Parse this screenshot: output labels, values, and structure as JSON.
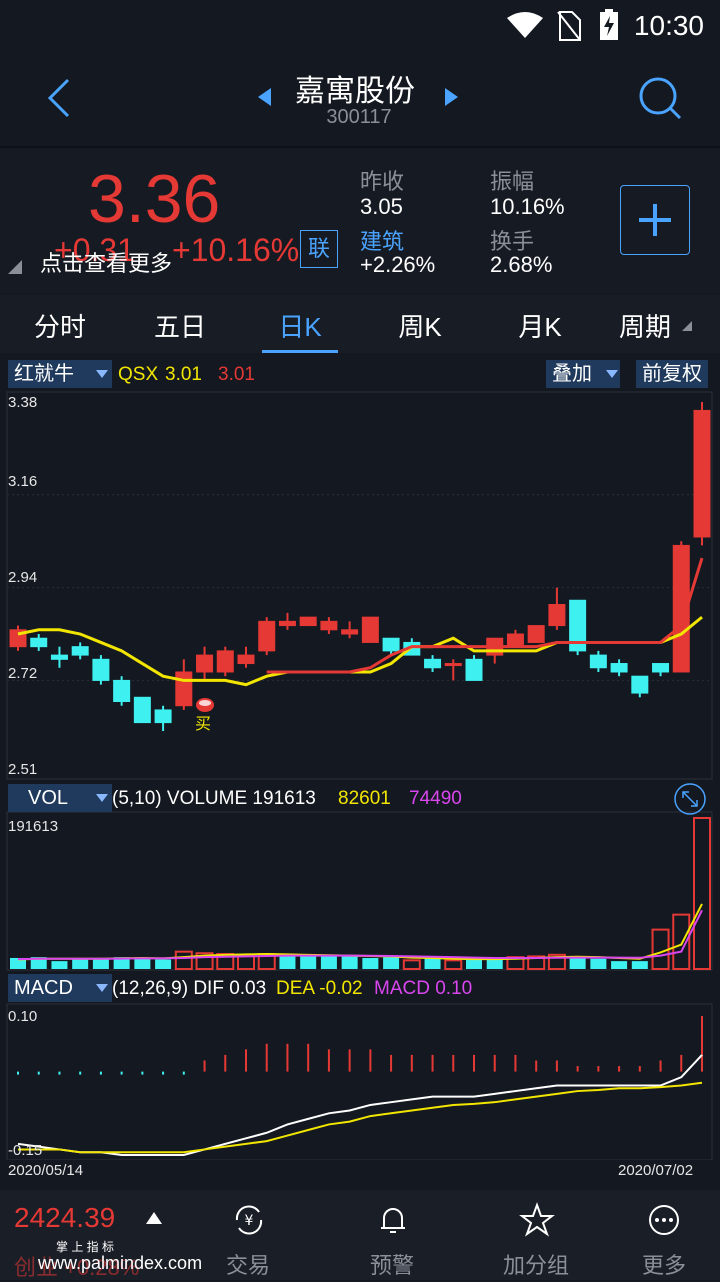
{
  "status": {
    "time": "10:30"
  },
  "header": {
    "title": "嘉寓股份",
    "code": "300117"
  },
  "quote": {
    "price": "3.36",
    "change": "+0.31",
    "change_pct": "+10.16%",
    "lian": "联",
    "tip": "点击查看更多",
    "prev_close_label": "昨收",
    "prev_close": "3.05",
    "amplitude_label": "振幅",
    "amplitude": "10.16%",
    "sector_label": "建筑",
    "sector_value": "+2.26%",
    "turnover_label": "换手",
    "turnover": "2.68%"
  },
  "tabs": [
    "分时",
    "五日",
    "日K",
    "周K",
    "月K",
    "周期"
  ],
  "active_tab": 2,
  "kline_bar": {
    "indicator": "红就牛",
    "qsx_label": "QSX",
    "qsx_val1": "3.01",
    "qsx_val2": "3.01",
    "overlay": "叠加",
    "adjust": "前复权"
  },
  "price_axis": [
    "3.38",
    "3.16",
    "2.94",
    "2.72",
    "2.51"
  ],
  "buy_marker": "买",
  "vol_bar": {
    "indicator": "VOL",
    "params": "(5,10) VOLUME 191613",
    "ma5": "82601",
    "ma10": "74490",
    "axis_top": "191613"
  },
  "macd_bar": {
    "indicator": "MACD",
    "params": "(12,26,9) DIF 0.03",
    "dea": "DEA -0.02",
    "macd": "MACD 0.10",
    "axis_top": "0.10",
    "axis_bottom": "-0.15"
  },
  "dates": {
    "start": "2020/05/14",
    "end": "2020/07/02"
  },
  "bottom": {
    "index_value": "2424.39",
    "index_name": "掌 上 指 标",
    "index_change": "创业 +0.28%",
    "watermark": "www.palmindex.com",
    "items": [
      "交易",
      "预警",
      "加分组",
      "更多"
    ]
  },
  "colors": {
    "up": "#e53935",
    "down": "#3ef0f0",
    "accent": "#4aa3ff",
    "ma_yellow": "#f2e600",
    "ma_magenta": "#d946ef"
  },
  "chart_data": {
    "type": "candlestick",
    "ylim": [
      2.51,
      3.38
    ],
    "candles": [
      {
        "o": 2.8,
        "c": 2.84,
        "h": 2.85,
        "l": 2.79
      },
      {
        "o": 2.82,
        "c": 2.8,
        "h": 2.83,
        "l": 2.79
      },
      {
        "o": 2.78,
        "c": 2.77,
        "h": 2.8,
        "l": 2.75
      },
      {
        "o": 2.8,
        "c": 2.78,
        "h": 2.81,
        "l": 2.77
      },
      {
        "o": 2.77,
        "c": 2.72,
        "h": 2.78,
        "l": 2.71
      },
      {
        "o": 2.72,
        "c": 2.67,
        "h": 2.73,
        "l": 2.66
      },
      {
        "o": 2.68,
        "c": 2.62,
        "h": 2.68,
        "l": 2.62
      },
      {
        "o": 2.65,
        "c": 2.62,
        "h": 2.66,
        "l": 2.6
      },
      {
        "o": 2.66,
        "c": 2.74,
        "h": 2.77,
        "l": 2.65
      },
      {
        "o": 2.74,
        "c": 2.78,
        "h": 2.8,
        "l": 2.72
      },
      {
        "o": 2.74,
        "c": 2.79,
        "h": 2.8,
        "l": 2.73
      },
      {
        "o": 2.76,
        "c": 2.78,
        "h": 2.8,
        "l": 2.75
      },
      {
        "o": 2.79,
        "c": 2.86,
        "h": 2.87,
        "l": 2.78
      },
      {
        "o": 2.85,
        "c": 2.86,
        "h": 2.88,
        "l": 2.84
      },
      {
        "o": 2.85,
        "c": 2.87,
        "h": 2.87,
        "l": 2.85
      },
      {
        "o": 2.84,
        "c": 2.86,
        "h": 2.87,
        "l": 2.83
      },
      {
        "o": 2.83,
        "c": 2.84,
        "h": 2.86,
        "l": 2.82
      },
      {
        "o": 2.81,
        "c": 2.87,
        "h": 2.87,
        "l": 2.81
      },
      {
        "o": 2.82,
        "c": 2.79,
        "h": 2.82,
        "l": 2.78
      },
      {
        "o": 2.81,
        "c": 2.78,
        "h": 2.82,
        "l": 2.78
      },
      {
        "o": 2.77,
        "c": 2.75,
        "h": 2.78,
        "l": 2.74
      },
      {
        "o": 2.76,
        "c": 2.76,
        "h": 2.77,
        "l": 2.72
      },
      {
        "o": 2.77,
        "c": 2.72,
        "h": 2.78,
        "l": 2.72
      },
      {
        "o": 2.78,
        "c": 2.82,
        "h": 2.82,
        "l": 2.76
      },
      {
        "o": 2.8,
        "c": 2.83,
        "h": 2.84,
        "l": 2.8
      },
      {
        "o": 2.81,
        "c": 2.85,
        "h": 2.85,
        "l": 2.81
      },
      {
        "o": 2.85,
        "c": 2.9,
        "h": 2.94,
        "l": 2.84
      },
      {
        "o": 2.91,
        "c": 2.79,
        "h": 2.91,
        "l": 2.78
      },
      {
        "o": 2.78,
        "c": 2.75,
        "h": 2.79,
        "l": 2.74
      },
      {
        "o": 2.76,
        "c": 2.74,
        "h": 2.77,
        "l": 2.73
      },
      {
        "o": 2.73,
        "c": 2.69,
        "h": 2.73,
        "l": 2.68
      },
      {
        "o": 2.76,
        "c": 2.74,
        "h": 2.76,
        "l": 2.73
      },
      {
        "o": 2.74,
        "c": 3.04,
        "h": 3.05,
        "l": 2.74
      },
      {
        "o": 3.06,
        "c": 3.36,
        "h": 3.38,
        "l": 3.04
      }
    ],
    "ma_yellow": [
      2.83,
      2.84,
      2.84,
      2.83,
      2.81,
      2.79,
      2.76,
      2.73,
      2.72,
      2.72,
      2.72,
      2.71,
      2.73,
      2.74,
      2.74,
      2.74,
      2.74,
      2.74,
      2.76,
      2.8,
      2.8,
      2.82,
      2.79,
      2.79,
      2.79,
      2.79,
      2.81,
      2.81,
      2.81,
      2.81,
      2.81,
      2.81,
      2.83,
      2.87
    ],
    "ma_red": [
      null,
      null,
      null,
      null,
      null,
      null,
      null,
      null,
      null,
      null,
      null,
      null,
      2.74,
      2.74,
      2.74,
      2.74,
      2.74,
      2.75,
      2.78,
      2.8,
      2.8,
      2.8,
      2.8,
      2.8,
      2.8,
      2.8,
      2.81,
      2.81,
      2.81,
      2.81,
      2.81,
      2.81,
      2.85,
      3.01
    ],
    "volume": [
      14000,
      15000,
      10000,
      13000,
      13000,
      15000,
      14000,
      12000,
      22000,
      20000,
      19000,
      17000,
      19000,
      18000,
      17000,
      18000,
      16000,
      14000,
      15000,
      11000,
      14000,
      11000,
      12000,
      13000,
      15000,
      16000,
      18000,
      14000,
      13000,
      10000,
      10000,
      50000,
      69000,
      191613
    ],
    "volume_up": [
      false,
      false,
      false,
      false,
      false,
      false,
      false,
      false,
      true,
      true,
      true,
      true,
      true,
      false,
      false,
      false,
      false,
      false,
      false,
      true,
      false,
      true,
      false,
      false,
      true,
      true,
      true,
      false,
      false,
      false,
      false,
      true,
      true,
      true
    ],
    "vol_ma5": [
      12000,
      13000,
      13000,
      13000,
      13000,
      13500,
      14000,
      13500,
      15000,
      17000,
      18000,
      18500,
      19000,
      18500,
      18000,
      17500,
      17000,
      16500,
      16000,
      14500,
      14000,
      13000,
      12500,
      12500,
      13000,
      14000,
      15000,
      15500,
      15000,
      14000,
      13000,
      21000,
      31000,
      82601
    ],
    "vol_ma10": [
      12500,
      13000,
      13000,
      13000,
      13000,
      13200,
      13500,
      13500,
      14000,
      15000,
      15500,
      16000,
      16500,
      17000,
      17000,
      17000,
      17000,
      16800,
      16500,
      16000,
      15500,
      15000,
      14500,
      14000,
      14000,
      14000,
      14200,
      14500,
      14500,
      14500,
      14200,
      17000,
      22000,
      74490
    ],
    "macd_hist": [
      0.0,
      0.0,
      0.0,
      0.0,
      0.0,
      0.0,
      0.0,
      0.0,
      0.0,
      0.02,
      0.03,
      0.04,
      0.05,
      0.05,
      0.05,
      0.04,
      0.04,
      0.04,
      0.03,
      0.03,
      0.03,
      0.03,
      0.03,
      0.03,
      0.03,
      0.02,
      0.02,
      0.01,
      0.01,
      0.01,
      0.01,
      0.02,
      0.03,
      0.1
    ],
    "macd_dif": [
      -0.13,
      -0.135,
      -0.14,
      -0.145,
      -0.145,
      -0.15,
      -0.15,
      -0.15,
      -0.15,
      -0.14,
      -0.13,
      -0.12,
      -0.11,
      -0.095,
      -0.085,
      -0.075,
      -0.07,
      -0.06,
      -0.055,
      -0.05,
      -0.045,
      -0.045,
      -0.045,
      -0.04,
      -0.035,
      -0.03,
      -0.025,
      -0.025,
      -0.025,
      -0.025,
      -0.025,
      -0.025,
      -0.01,
      0.03
    ],
    "macd_dea": [
      -0.14,
      -0.14,
      -0.14,
      -0.145,
      -0.145,
      -0.145,
      -0.145,
      -0.145,
      -0.145,
      -0.14,
      -0.135,
      -0.13,
      -0.125,
      -0.115,
      -0.105,
      -0.095,
      -0.09,
      -0.08,
      -0.075,
      -0.07,
      -0.065,
      -0.06,
      -0.058,
      -0.055,
      -0.05,
      -0.045,
      -0.04,
      -0.035,
      -0.033,
      -0.03,
      -0.03,
      -0.028,
      -0.025,
      -0.02
    ]
  }
}
